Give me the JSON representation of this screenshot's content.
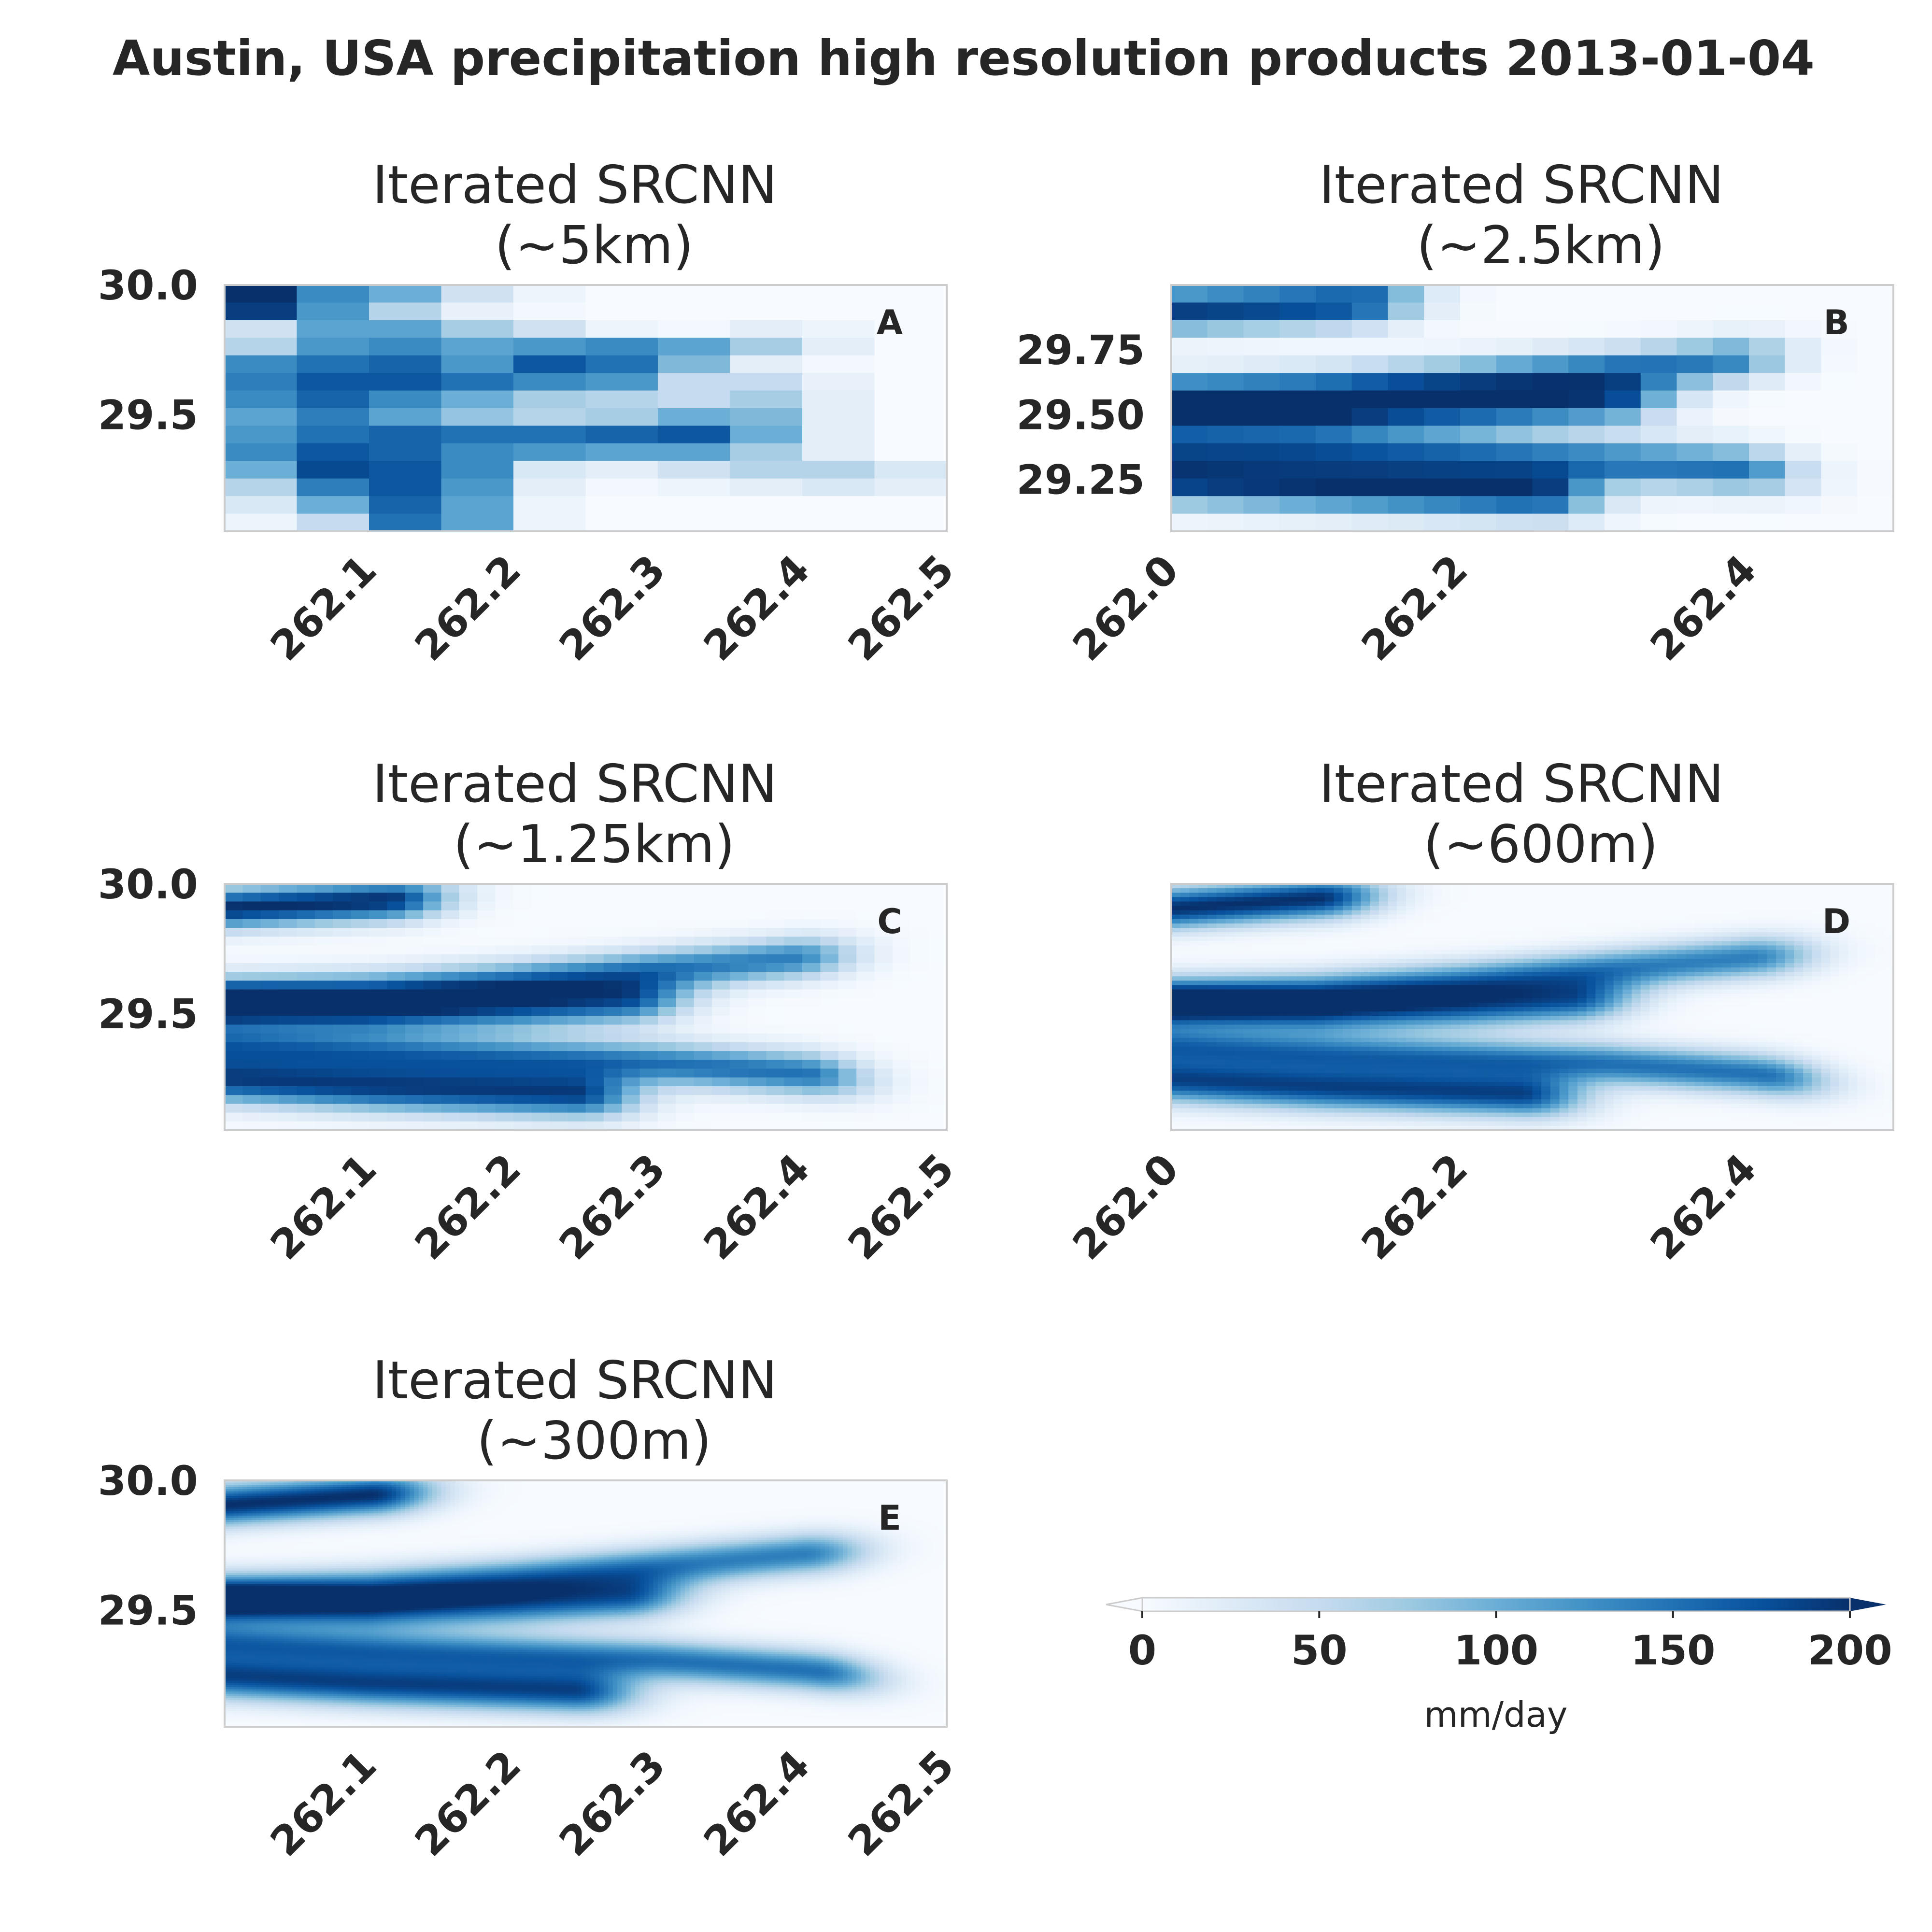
{
  "chart_data": {
    "type": "heatmap",
    "title": "Austin, USA precipitation high resolution products 2013-01-04",
    "colormap": "Blues",
    "value_range": [
      0,
      200
    ],
    "colorbar": {
      "label": "mm/day",
      "ticks": [
        "0",
        "50",
        "100",
        "150",
        "200"
      ],
      "extend": "both",
      "orientation": "horizontal"
    },
    "panels": [
      {
        "id": "A",
        "title_line1": "Iterated SRCNN",
        "title_line2": "(~5km)",
        "xlim": [
          262.0,
          262.5
        ],
        "ylim": [
          29.05,
          30.0
        ],
        "xticks": [
          "262.1",
          "262.2",
          "262.3",
          "262.4",
          "262.5"
        ],
        "yticks": [
          "30.0",
          "29.5"
        ],
        "grid": [
          10,
          14
        ],
        "cells": [
          [
            200,
            130,
            100,
            40,
            10,
            0,
            0,
            0,
            0,
            0
          ],
          [
            190,
            120,
            60,
            15,
            5,
            0,
            0,
            0,
            0,
            0
          ],
          [
            40,
            110,
            110,
            70,
            40,
            10,
            5,
            20,
            10,
            0
          ],
          [
            60,
            120,
            130,
            110,
            120,
            130,
            110,
            70,
            20,
            0
          ],
          [
            130,
            150,
            160,
            120,
            170,
            150,
            90,
            20,
            5,
            0
          ],
          [
            140,
            170,
            170,
            150,
            130,
            120,
            50,
            50,
            15,
            0
          ],
          [
            130,
            160,
            130,
            100,
            70,
            60,
            50,
            70,
            20,
            0
          ],
          [
            110,
            140,
            110,
            80,
            60,
            70,
            100,
            90,
            20,
            0
          ],
          [
            120,
            150,
            160,
            150,
            150,
            160,
            170,
            100,
            20,
            0
          ],
          [
            130,
            170,
            160,
            130,
            120,
            110,
            110,
            70,
            20,
            0
          ],
          [
            100,
            180,
            170,
            130,
            30,
            20,
            40,
            60,
            60,
            30
          ],
          [
            60,
            140,
            170,
            120,
            20,
            5,
            10,
            20,
            30,
            20
          ],
          [
            30,
            100,
            160,
            110,
            10,
            0,
            0,
            0,
            0,
            0
          ],
          [
            10,
            50,
            150,
            110,
            10,
            0,
            0,
            0,
            0,
            0
          ]
        ]
      },
      {
        "id": "B",
        "title_line1": "Iterated SRCNN",
        "title_line2": "(~2.5km)",
        "xlim": [
          262.0,
          262.5
        ],
        "ylim": [
          29.05,
          30.0
        ],
        "xticks": [
          "262.0",
          "262.2",
          "262.4"
        ],
        "yticks": [
          "29.75",
          "29.50",
          "29.25"
        ],
        "grid": [
          20,
          14
        ],
        "curves": [
          {
            "amp": 190,
            "sigma": 0.6,
            "reach": 0.25,
            "points": [
              [
                0.0,
                0.1
              ],
              [
                0.2,
                0.08
              ],
              [
                0.4,
                0.05
              ],
              [
                0.6,
                0.03
              ],
              [
                0.8,
                0.02
              ],
              [
                1.0,
                0.02
              ]
            ]
          },
          {
            "amp": 140,
            "sigma": 0.55,
            "reach": 0.76,
            "points": [
              [
                0.0,
                0.46
              ],
              [
                0.2,
                0.43
              ],
              [
                0.4,
                0.39
              ],
              [
                0.6,
                0.35
              ],
              [
                0.8,
                0.3
              ],
              [
                1.0,
                0.26
              ]
            ]
          },
          {
            "amp": 170,
            "sigma": 0.65,
            "reach": 0.6,
            "points": [
              [
                0.0,
                0.5
              ],
              [
                0.2,
                0.52
              ],
              [
                0.4,
                0.5
              ],
              [
                0.6,
                0.47
              ],
              [
                0.8,
                0.44
              ],
              [
                1.0,
                0.42
              ]
            ]
          },
          {
            "amp": 150,
            "sigma": 0.6,
            "reach": 0.78,
            "points": [
              [
                0.0,
                0.66
              ],
              [
                0.2,
                0.68
              ],
              [
                0.4,
                0.7
              ],
              [
                0.6,
                0.72
              ],
              [
                0.8,
                0.75
              ],
              [
                1.0,
                0.8
              ]
            ]
          },
          {
            "amp": 185,
            "sigma": 0.65,
            "reach": 0.5,
            "points": [
              [
                0.0,
                0.8
              ],
              [
                0.2,
                0.82
              ],
              [
                0.4,
                0.84
              ],
              [
                0.6,
                0.86
              ],
              [
                0.8,
                0.88
              ],
              [
                1.0,
                0.9
              ]
            ]
          }
        ]
      },
      {
        "id": "C",
        "title_line1": "Iterated SRCNN",
        "title_line2": "(~1.25km)",
        "xlim": [
          262.0,
          262.5
        ],
        "ylim": [
          29.05,
          30.0
        ],
        "xticks": [
          "262.1",
          "262.2",
          "262.3",
          "262.4",
          "262.5"
        ],
        "yticks": [
          "30.0",
          "29.5"
        ],
        "grid": [
          40,
          28
        ],
        "curves": [
          {
            "amp": 200,
            "sigma": 0.5,
            "reach": 0.22,
            "points": [
              [
                0.0,
                0.1
              ],
              [
                0.2,
                0.07
              ],
              [
                0.4,
                0.04
              ],
              [
                0.6,
                0.02
              ],
              [
                0.8,
                0.01
              ],
              [
                1.0,
                0.01
              ]
            ]
          },
          {
            "amp": 140,
            "sigma": 0.5,
            "reach": 0.78,
            "points": [
              [
                0.0,
                0.46
              ],
              [
                0.2,
                0.44
              ],
              [
                0.4,
                0.4
              ],
              [
                0.6,
                0.35
              ],
              [
                0.8,
                0.3
              ],
              [
                1.0,
                0.27
              ]
            ]
          },
          {
            "amp": 165,
            "sigma": 0.6,
            "reach": 0.55,
            "points": [
              [
                0.0,
                0.5
              ],
              [
                0.2,
                0.52
              ],
              [
                0.4,
                0.5
              ],
              [
                0.6,
                0.47
              ],
              [
                0.8,
                0.44
              ],
              [
                1.0,
                0.42
              ]
            ]
          },
          {
            "amp": 150,
            "sigma": 0.55,
            "reach": 0.8,
            "points": [
              [
                0.0,
                0.66
              ],
              [
                0.2,
                0.69
              ],
              [
                0.4,
                0.71
              ],
              [
                0.6,
                0.73
              ],
              [
                0.8,
                0.77
              ],
              [
                1.0,
                0.82
              ]
            ]
          },
          {
            "amp": 180,
            "sigma": 0.6,
            "reach": 0.48,
            "points": [
              [
                0.0,
                0.8
              ],
              [
                0.2,
                0.83
              ],
              [
                0.4,
                0.85
              ],
              [
                0.6,
                0.87
              ],
              [
                0.8,
                0.89
              ],
              [
                1.0,
                0.9
              ]
            ]
          }
        ]
      },
      {
        "id": "D",
        "title_line1": "Iterated SRCNN",
        "title_line2": "(~600m)",
        "xlim": [
          262.0,
          262.5
        ],
        "ylim": [
          29.05,
          30.0
        ],
        "xticks": [
          "262.0",
          "262.2",
          "262.4"
        ],
        "yticks": [],
        "grid": [
          80,
          56
        ],
        "curves": [
          {
            "amp": 200,
            "sigma": 0.5,
            "reach": 0.2,
            "points": [
              [
                0.0,
                0.1
              ],
              [
                0.2,
                0.06
              ],
              [
                0.4,
                0.03
              ],
              [
                0.6,
                0.02
              ],
              [
                0.8,
                0.01
              ],
              [
                1.0,
                0.01
              ]
            ]
          },
          {
            "amp": 140,
            "sigma": 0.5,
            "reach": 0.8,
            "points": [
              [
                0.0,
                0.46
              ],
              [
                0.2,
                0.44
              ],
              [
                0.4,
                0.4
              ],
              [
                0.6,
                0.35
              ],
              [
                0.8,
                0.3
              ],
              [
                1.0,
                0.27
              ]
            ]
          },
          {
            "amp": 160,
            "sigma": 0.55,
            "reach": 0.55,
            "points": [
              [
                0.0,
                0.5
              ],
              [
                0.2,
                0.52
              ],
              [
                0.4,
                0.5
              ],
              [
                0.6,
                0.47
              ],
              [
                0.8,
                0.44
              ],
              [
                1.0,
                0.42
              ]
            ]
          },
          {
            "amp": 150,
            "sigma": 0.5,
            "reach": 0.82,
            "points": [
              [
                0.0,
                0.66
              ],
              [
                0.2,
                0.69
              ],
              [
                0.4,
                0.71
              ],
              [
                0.6,
                0.73
              ],
              [
                0.8,
                0.77
              ],
              [
                1.0,
                0.83
              ]
            ]
          },
          {
            "amp": 180,
            "sigma": 0.55,
            "reach": 0.48,
            "points": [
              [
                0.0,
                0.8
              ],
              [
                0.2,
                0.83
              ],
              [
                0.4,
                0.85
              ],
              [
                0.6,
                0.87
              ],
              [
                0.8,
                0.89
              ],
              [
                1.0,
                0.9
              ]
            ]
          }
        ]
      },
      {
        "id": "E",
        "title_line1": "Iterated SRCNN",
        "title_line2": "(~300m)",
        "xlim": [
          262.0,
          262.5
        ],
        "ylim": [
          29.05,
          30.0
        ],
        "xticks": [
          "262.1",
          "262.2",
          "262.3",
          "262.4",
          "262.5"
        ],
        "yticks": [
          "30.0",
          "29.5"
        ],
        "grid": [
          160,
          112
        ],
        "curves": [
          {
            "amp": 200,
            "sigma": 0.5,
            "reach": 0.2,
            "points": [
              [
                0.0,
                0.1
              ],
              [
                0.2,
                0.06
              ],
              [
                0.4,
                0.03
              ],
              [
                0.6,
                0.02
              ],
              [
                0.8,
                0.01
              ],
              [
                1.0,
                0.01
              ]
            ]
          },
          {
            "amp": 140,
            "sigma": 0.5,
            "reach": 0.8,
            "points": [
              [
                0.0,
                0.46
              ],
              [
                0.2,
                0.44
              ],
              [
                0.4,
                0.4
              ],
              [
                0.6,
                0.35
              ],
              [
                0.8,
                0.3
              ],
              [
                1.0,
                0.27
              ]
            ]
          },
          {
            "amp": 160,
            "sigma": 0.55,
            "reach": 0.55,
            "points": [
              [
                0.0,
                0.5
              ],
              [
                0.2,
                0.52
              ],
              [
                0.4,
                0.5
              ],
              [
                0.6,
                0.47
              ],
              [
                0.8,
                0.44
              ],
              [
                1.0,
                0.42
              ]
            ]
          },
          {
            "amp": 150,
            "sigma": 0.5,
            "reach": 0.82,
            "points": [
              [
                0.0,
                0.66
              ],
              [
                0.2,
                0.69
              ],
              [
                0.4,
                0.71
              ],
              [
                0.6,
                0.73
              ],
              [
                0.8,
                0.77
              ],
              [
                1.0,
                0.83
              ]
            ]
          },
          {
            "amp": 180,
            "sigma": 0.55,
            "reach": 0.48,
            "points": [
              [
                0.0,
                0.8
              ],
              [
                0.2,
                0.83
              ],
              [
                0.4,
                0.85
              ],
              [
                0.6,
                0.87
              ],
              [
                0.8,
                0.89
              ],
              [
                1.0,
                0.9
              ]
            ]
          }
        ]
      }
    ]
  }
}
